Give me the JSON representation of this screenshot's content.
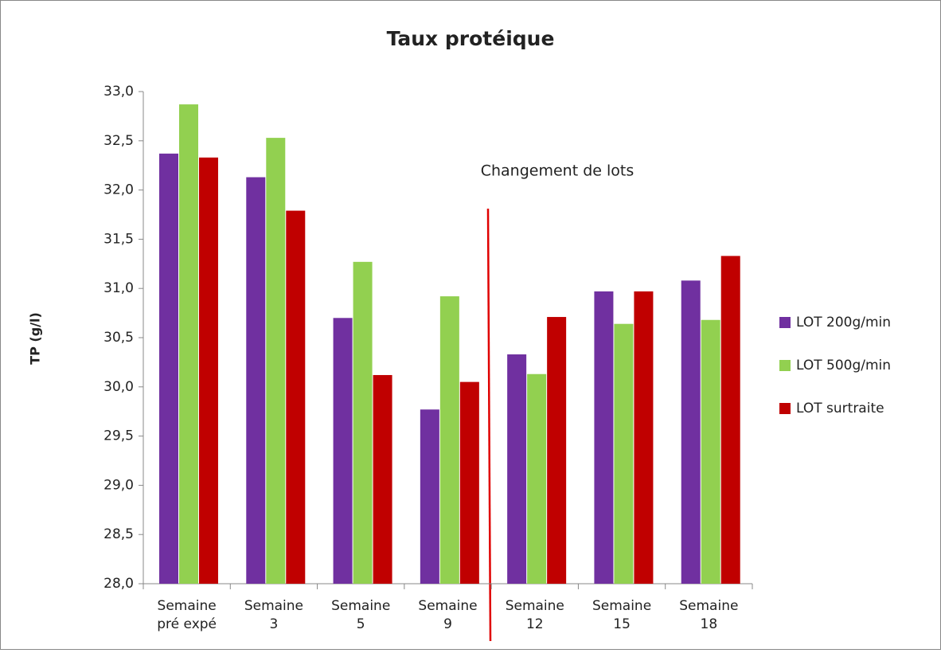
{
  "chart_data": {
    "type": "bar",
    "title": "Taux protéique",
    "y_label": "TP (g/l)",
    "annotation": "Changement de lots",
    "categories": [
      "Semaine pré expé",
      "Semaine 3",
      "Semaine 5",
      "Semaine 9",
      "Semaine 12",
      "Semaine 15",
      "Semaine 18"
    ],
    "series": [
      {
        "name": "LOT 200g/min",
        "color": "#7030a0",
        "values": [
          32.37,
          32.13,
          30.7,
          29.77,
          30.33,
          30.97,
          31.08
        ]
      },
      {
        "name": "LOT 500g/min",
        "color": "#92d050",
        "values": [
          32.87,
          32.53,
          31.27,
          30.92,
          30.13,
          30.64,
          30.68
        ]
      },
      {
        "name": "LOT surtraite",
        "color": "#c00000",
        "values": [
          32.33,
          31.79,
          30.12,
          30.05,
          30.71,
          30.97,
          31.33
        ]
      }
    ],
    "ylim": [
      28,
      33
    ],
    "yticks": [
      {
        "value": 28,
        "label": "28,0"
      },
      {
        "value": 28.5,
        "label": "28,5"
      },
      {
        "value": 29,
        "label": "29,0"
      },
      {
        "value": 29.5,
        "label": "29,5"
      },
      {
        "value": 30,
        "label": "30,0"
      },
      {
        "value": 30.5,
        "label": "30,5"
      },
      {
        "value": 31,
        "label": "31,0"
      },
      {
        "value": 31.5,
        "label": "31,5"
      },
      {
        "value": 32,
        "label": "32,0"
      },
      {
        "value": 32.5,
        "label": "32,5"
      },
      {
        "value": 33,
        "label": "33,0"
      }
    ],
    "legend": "right",
    "grid": false
  }
}
